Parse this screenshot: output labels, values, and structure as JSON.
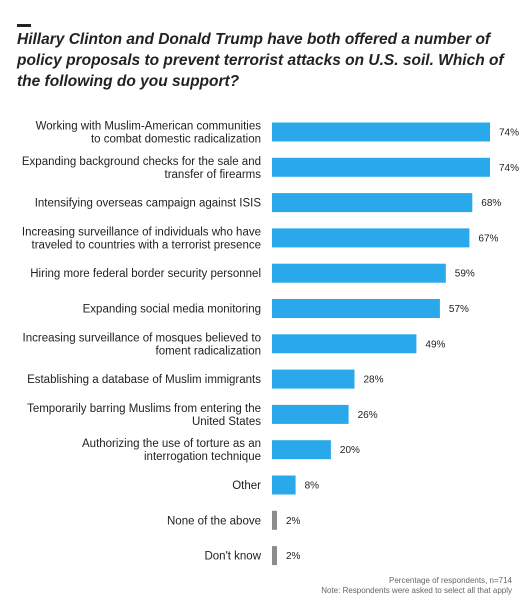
{
  "header": {
    "title": "Hillary Clinton and Donald Trump have both offered a number of policy proposals to prevent terrorist attacks on U.S. soil. Which of the following do you support?"
  },
  "footer": {
    "note1": "Percentage of respondents, n=714",
    "note2": "Note: Respondents were asked to select all that apply"
  },
  "colors": {
    "bar": "#29a9eb",
    "bar_small": "#8c8c8c",
    "text": "#222222"
  },
  "chart_data": {
    "type": "bar",
    "orientation": "horizontal",
    "categories": [
      "Working with Muslim-American communities to combat domestic radicalization",
      "Expanding background checks for the sale and transfer of firearms",
      "Intensifying overseas campaign against ISIS",
      "Increasing surveillance of individuals who have traveled to countries with a terrorist presence",
      "Hiring more federal border security personnel",
      "Expanding social media monitoring",
      "Increasing surveillance of mosques believed to foment radicalization",
      "Establishing a database of Muslim immigrants",
      "Temporarily barring Muslims from entering the United States",
      "Authorizing the use of torture as an interrogation technique",
      "Other",
      "None of the above",
      "Don't know"
    ],
    "category_lines": [
      [
        "Working with Muslim-American communities",
        "to combat domestic radicalization"
      ],
      [
        "Expanding background checks for the sale and",
        "transfer of firearms"
      ],
      [
        "Intensifying overseas campaign against ISIS"
      ],
      [
        "Increasing surveillance of individuals who have",
        "traveled to countries with a terrorist presence"
      ],
      [
        "Hiring more federal border security personnel"
      ],
      [
        "Expanding social media monitoring"
      ],
      [
        "Increasing surveillance of mosques believed to",
        "foment radicalization"
      ],
      [
        "Establishing a database of Muslim immigrants"
      ],
      [
        "Temporarily barring Muslims from entering the",
        "United States"
      ],
      [
        "Authorizing the use of torture as an",
        "interrogation technique"
      ],
      [
        "Other"
      ],
      [
        "None of the above"
      ],
      [
        "Don't know"
      ]
    ],
    "values": [
      74,
      74,
      68,
      67,
      59,
      57,
      49,
      28,
      26,
      20,
      8,
      2,
      2
    ],
    "value_labels": [
      "74%",
      "74%",
      "68%",
      "67%",
      "59%",
      "57%",
      "49%",
      "28%",
      "26%",
      "20%",
      "8%",
      "2%",
      "2%"
    ],
    "xlim": [
      0,
      74
    ],
    "grid": false,
    "legend": "none"
  }
}
